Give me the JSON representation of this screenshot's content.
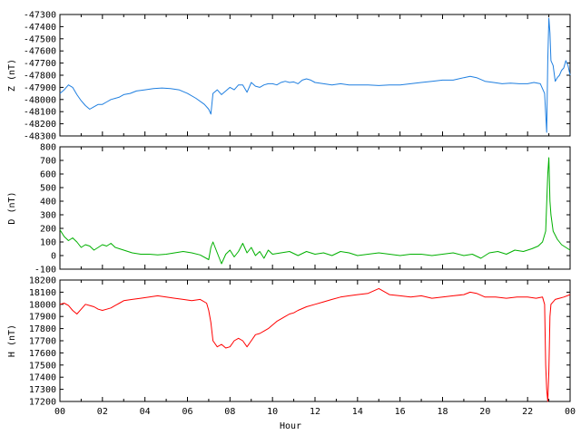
{
  "chart_data": [
    {
      "type": "line",
      "ylabel": "Z (nT)",
      "ylim": [
        -48300,
        -47300
      ],
      "yticks": [
        -47300,
        -47400,
        -47500,
        -47600,
        -47700,
        -47800,
        -47900,
        -48000,
        -48100,
        -48200,
        -48300
      ],
      "xlim": [
        0,
        24
      ],
      "grid": false,
      "color": "#1f7fe0",
      "series": [
        {
          "name": "",
          "x": [
            0.0,
            0.2,
            0.4,
            0.6,
            0.8,
            1.0,
            1.2,
            1.4,
            1.6,
            1.8,
            2.0,
            2.2,
            2.4,
            2.6,
            2.8,
            3.0,
            3.3,
            3.6,
            4.0,
            4.4,
            4.8,
            5.2,
            5.6,
            6.0,
            6.4,
            6.8,
            7.0,
            7.1,
            7.2,
            7.4,
            7.6,
            7.8,
            8.0,
            8.2,
            8.4,
            8.6,
            8.8,
            9.0,
            9.2,
            9.4,
            9.6,
            9.8,
            10.0,
            10.2,
            10.4,
            10.6,
            10.8,
            11.0,
            11.2,
            11.4,
            11.6,
            11.8,
            12.0,
            12.4,
            12.8,
            13.2,
            13.6,
            14.0,
            14.5,
            15.0,
            15.5,
            16.0,
            16.5,
            17.0,
            17.5,
            18.0,
            18.5,
            19.0,
            19.3,
            19.6,
            20.0,
            20.4,
            20.8,
            21.2,
            21.6,
            22.0,
            22.3,
            22.6,
            22.8,
            22.9,
            22.95,
            23.0,
            23.05,
            23.1,
            23.2,
            23.3,
            23.4,
            23.5,
            23.6,
            23.7,
            23.8,
            23.9,
            24.0
          ],
          "values": [
            -47950,
            -47920,
            -47880,
            -47900,
            -47960,
            -48010,
            -48050,
            -48080,
            -48060,
            -48040,
            -48040,
            -48020,
            -48000,
            -47990,
            -47980,
            -47960,
            -47950,
            -47930,
            -47920,
            -47910,
            -47905,
            -47910,
            -47920,
            -47950,
            -47990,
            -48040,
            -48080,
            -48120,
            -47950,
            -47920,
            -47960,
            -47930,
            -47900,
            -47920,
            -47880,
            -47880,
            -47940,
            -47860,
            -47890,
            -47900,
            -47880,
            -47870,
            -47870,
            -47880,
            -47860,
            -47850,
            -47860,
            -47855,
            -47870,
            -47840,
            -47830,
            -47840,
            -47860,
            -47870,
            -47880,
            -47870,
            -47880,
            -47880,
            -47880,
            -47885,
            -47880,
            -47880,
            -47870,
            -47860,
            -47850,
            -47840,
            -47840,
            -47820,
            -47810,
            -47820,
            -47850,
            -47860,
            -47870,
            -47865,
            -47870,
            -47870,
            -47860,
            -47870,
            -47950,
            -48270,
            -47680,
            -47330,
            -47450,
            -47680,
            -47720,
            -47850,
            -47820,
            -47800,
            -47760,
            -47740,
            -47680,
            -47720,
            -47800
          ]
        }
      ]
    },
    {
      "type": "line",
      "ylabel": "D (nT)",
      "ylim": [
        -100,
        800
      ],
      "yticks": [
        800,
        700,
        600,
        500,
        400,
        300,
        200,
        100,
        0,
        -100
      ],
      "xlim": [
        0,
        24
      ],
      "grid": false,
      "color": "#00b000",
      "series": [
        {
          "name": "",
          "x": [
            0.0,
            0.2,
            0.4,
            0.6,
            0.8,
            1.0,
            1.2,
            1.4,
            1.6,
            1.8,
            2.0,
            2.2,
            2.4,
            2.6,
            2.8,
            3.0,
            3.4,
            3.8,
            4.2,
            4.6,
            5.0,
            5.4,
            5.8,
            6.2,
            6.6,
            7.0,
            7.1,
            7.2,
            7.4,
            7.6,
            7.8,
            8.0,
            8.2,
            8.4,
            8.6,
            8.8,
            9.0,
            9.2,
            9.4,
            9.6,
            9.8,
            10.0,
            10.4,
            10.8,
            11.2,
            11.6,
            12.0,
            12.4,
            12.8,
            13.2,
            13.6,
            14.0,
            14.5,
            15.0,
            15.5,
            16.0,
            16.5,
            17.0,
            17.5,
            18.0,
            18.5,
            19.0,
            19.4,
            19.8,
            20.2,
            20.6,
            21.0,
            21.4,
            21.8,
            22.2,
            22.5,
            22.7,
            22.85,
            22.95,
            23.0,
            23.05,
            23.1,
            23.2,
            23.4,
            23.6,
            23.8,
            24.0
          ],
          "values": [
            190,
            140,
            110,
            130,
            100,
            60,
            80,
            70,
            40,
            60,
            80,
            70,
            90,
            60,
            50,
            40,
            20,
            10,
            10,
            5,
            10,
            20,
            30,
            20,
            5,
            -30,
            60,
            100,
            20,
            -60,
            10,
            40,
            -10,
            30,
            90,
            20,
            60,
            0,
            30,
            -20,
            40,
            10,
            20,
            30,
            0,
            30,
            10,
            20,
            0,
            30,
            20,
            0,
            10,
            20,
            10,
            0,
            10,
            10,
            0,
            10,
            20,
            0,
            10,
            -20,
            20,
            30,
            10,
            40,
            30,
            50,
            70,
            100,
            180,
            600,
            720,
            400,
            300,
            180,
            120,
            80,
            60,
            40
          ]
        }
      ]
    },
    {
      "type": "line",
      "ylabel": "H (nT)",
      "xlabel": "Hour",
      "ylim": [
        17200,
        18200
      ],
      "yticks": [
        18200,
        18100,
        18000,
        17900,
        17800,
        17700,
        17600,
        17500,
        17400,
        17300,
        17200
      ],
      "xlim": [
        0,
        24
      ],
      "xticks": [
        "00",
        "02",
        "04",
        "06",
        "08",
        "10",
        "12",
        "14",
        "16",
        "18",
        "20",
        "22",
        "00"
      ],
      "grid": false,
      "color": "#ff0000",
      "series": [
        {
          "name": "",
          "x": [
            0.0,
            0.2,
            0.4,
            0.6,
            0.8,
            1.0,
            1.2,
            1.4,
            1.6,
            1.8,
            2.0,
            2.2,
            2.4,
            2.6,
            2.8,
            3.0,
            3.4,
            3.8,
            4.2,
            4.6,
            5.0,
            5.4,
            5.8,
            6.2,
            6.6,
            6.9,
            7.0,
            7.1,
            7.2,
            7.4,
            7.6,
            7.8,
            8.0,
            8.2,
            8.4,
            8.6,
            8.8,
            9.0,
            9.2,
            9.4,
            9.6,
            9.8,
            10.0,
            10.2,
            10.4,
            10.6,
            10.8,
            11.0,
            11.2,
            11.6,
            12.0,
            12.4,
            12.8,
            13.2,
            13.6,
            14.0,
            14.5,
            15.0,
            15.5,
            16.0,
            16.5,
            17.0,
            17.5,
            18.0,
            18.5,
            19.0,
            19.3,
            19.6,
            20.0,
            20.5,
            21.0,
            21.5,
            22.0,
            22.4,
            22.7,
            22.8,
            22.85,
            22.9,
            22.95,
            23.0,
            23.05,
            23.1,
            23.2,
            23.3,
            23.5,
            23.7,
            24.0
          ],
          "values": [
            18000,
            18010,
            17990,
            17950,
            17920,
            17960,
            18000,
            17990,
            17980,
            17960,
            17950,
            17960,
            17970,
            17990,
            18010,
            18030,
            18040,
            18050,
            18060,
            18070,
            18060,
            18050,
            18040,
            18030,
            18040,
            18010,
            17950,
            17850,
            17700,
            17650,
            17670,
            17640,
            17650,
            17700,
            17720,
            17700,
            17650,
            17700,
            17750,
            17760,
            17780,
            17800,
            17830,
            17860,
            17880,
            17900,
            17920,
            17930,
            17950,
            17980,
            18000,
            18020,
            18040,
            18060,
            18070,
            18080,
            18090,
            18130,
            18080,
            18070,
            18060,
            18070,
            18050,
            18060,
            18070,
            18080,
            18100,
            18090,
            18060,
            18060,
            18050,
            18060,
            18060,
            18050,
            18060,
            18000,
            17500,
            17300,
            17200,
            17450,
            17900,
            18000,
            18020,
            18040,
            18050,
            18060,
            18080
          ]
        }
      ]
    }
  ]
}
